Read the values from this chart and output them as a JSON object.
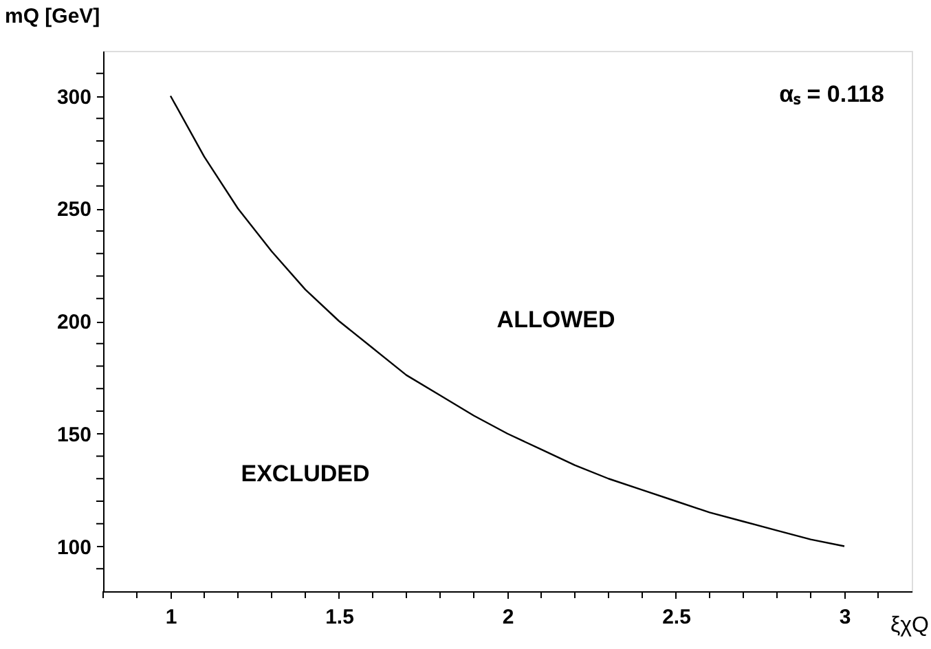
{
  "chart_data": {
    "type": "line",
    "xlabel": "ξχQ",
    "ylabel": "mQ [GeV]",
    "x": [
      1,
      1.1,
      1.2,
      1.3,
      1.4,
      1.5,
      1.6,
      1.7,
      1.8,
      1.9,
      2,
      2.1,
      2.2,
      2.3,
      2.4,
      2.5,
      2.6,
      2.7,
      2.8,
      2.9,
      3
    ],
    "series": [
      {
        "color": "#000000",
        "values": [
          300,
          273,
          250,
          231,
          214,
          200,
          188,
          176,
          167,
          158,
          150,
          143,
          136,
          130,
          125,
          120,
          115,
          111,
          107,
          103,
          100
        ]
      }
    ],
    "xlim": [
      0.8,
      3.2
    ],
    "xticks": [
      {
        "value": 0.8,
        "label": null
      },
      {
        "value": 0.9,
        "label": null
      },
      1,
      {
        "value": 1.1,
        "label": null
      },
      {
        "value": 1.2,
        "label": null
      },
      {
        "value": 1.3,
        "label": null
      },
      {
        "value": 1.4,
        "label": null
      },
      1.5,
      {
        "value": 1.6,
        "label": null
      },
      {
        "value": 1.7,
        "label": null
      },
      {
        "value": 1.8,
        "label": null
      },
      {
        "value": 1.9,
        "label": null
      },
      2,
      {
        "value": 2.1,
        "label": null
      },
      {
        "value": 2.2,
        "label": null
      },
      {
        "value": 2.3,
        "label": null
      },
      {
        "value": 2.4,
        "label": null
      },
      2.5,
      {
        "value": 2.6,
        "label": null
      },
      {
        "value": 2.7,
        "label": null
      },
      {
        "value": 2.8,
        "label": null
      },
      {
        "value": 2.9,
        "label": null
      },
      3,
      {
        "value": 3.1,
        "label": null
      }
    ],
    "ylim": [
      80,
      320
    ],
    "yticks": [
      {
        "value": 90,
        "label": null
      },
      100,
      {
        "value": 110,
        "label": null
      },
      {
        "value": 120,
        "label": null
      },
      {
        "value": 130,
        "label": null
      },
      {
        "value": 140,
        "label": null
      },
      150,
      {
        "value": 160,
        "label": null
      },
      {
        "value": 170,
        "label": null
      },
      {
        "value": 180,
        "label": null
      },
      {
        "value": 190,
        "label": null
      },
      200,
      {
        "value": 210,
        "label": null
      },
      {
        "value": 220,
        "label": null
      },
      {
        "value": 230,
        "label": null
      },
      {
        "value": 240,
        "label": null
      },
      250,
      {
        "value": 260,
        "label": null
      },
      {
        "value": 270,
        "label": null
      },
      {
        "value": 280,
        "label": null
      },
      {
        "value": 290,
        "label": null
      },
      300,
      {
        "value": 310,
        "label": null
      }
    ],
    "annotations": [
      "αₛ = 0.118",
      "ALLOWED",
      "EXCLUDED"
    ],
    "grid": false,
    "marker": "none",
    "line_style": "solid"
  }
}
